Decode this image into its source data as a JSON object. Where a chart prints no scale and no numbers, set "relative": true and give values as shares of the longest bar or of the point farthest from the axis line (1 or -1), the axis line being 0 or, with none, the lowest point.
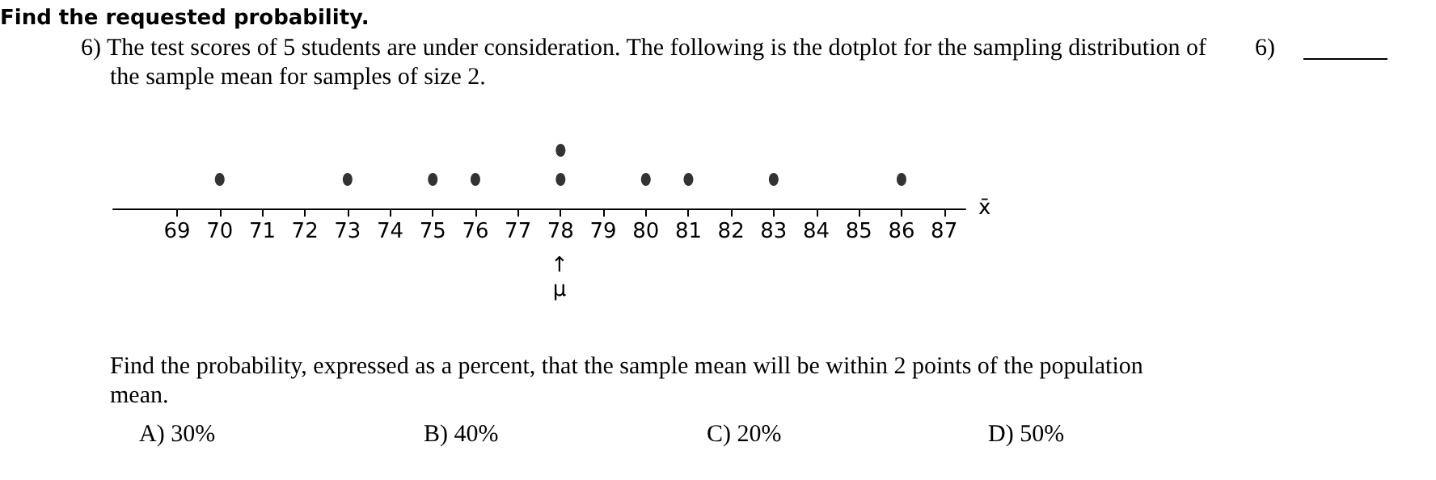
{
  "chart_data": {
    "type": "scatter",
    "title": "Find the requested probability.",
    "subtitle": "6) The test scores of 5 students are under consideration. The following is the dotplot for the sampling distribution of the sample mean for samples of size 2.",
    "xlabel": "x̄",
    "x": [
      70,
      73,
      75,
      76,
      78,
      78,
      80,
      81,
      83,
      86
    ],
    "series": [
      {
        "color": "#000000",
        "values": [
          0.5,
          0.5,
          0.5,
          0.5,
          0.5,
          1,
          0.5,
          0.5,
          0.5,
          0.5
        ]
      }
    ],
    "relative": true,
    "marker": "circle",
    "xlim": [
      67.5,
      87.5
    ],
    "xticks": [
      69,
      70,
      71,
      72,
      73,
      74,
      75,
      76,
      77,
      78,
      79,
      80,
      81,
      82,
      83,
      84,
      85,
      86,
      87
    ],
    "annotations": [
      "↑\nμ",
      "6)",
      "Find the probability, expressed as a percent, that the sample mean will be within 2 points of the population mean.",
      "A) 30%",
      "B) 40%",
      "C) 20%",
      "D) 50%"
    ]
  }
}
